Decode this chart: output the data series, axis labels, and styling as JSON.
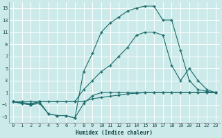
{
  "xlabel": "Humidex (Indice chaleur)",
  "bg_color": "#cceaea",
  "grid_color": "#ffffff",
  "line_color": "#1a6b6b",
  "xlim": [
    -0.5,
    23.5
  ],
  "ylim": [
    -4.0,
    16.0
  ],
  "xticks": [
    0,
    1,
    2,
    3,
    4,
    5,
    6,
    7,
    8,
    9,
    10,
    11,
    12,
    13,
    14,
    15,
    16,
    17,
    18,
    19,
    20,
    21,
    22,
    23
  ],
  "yticks": [
    -3,
    -1,
    1,
    3,
    5,
    7,
    9,
    11,
    13,
    15
  ],
  "line1_x": [
    0,
    1,
    2,
    3,
    4,
    5,
    6,
    7,
    8,
    9,
    10,
    11,
    12,
    13,
    14,
    15,
    16,
    17,
    18,
    19,
    20,
    21,
    22,
    23
  ],
  "line1_y": [
    -0.5,
    -0.5,
    -0.5,
    -0.5,
    -0.5,
    -0.5,
    -0.5,
    -0.5,
    -0.5,
    0.0,
    0.2,
    0.4,
    0.6,
    0.8,
    0.9,
    1.0,
    1.0,
    1.0,
    1.0,
    1.0,
    1.0,
    1.0,
    1.0,
    1.0
  ],
  "line2_x": [
    0,
    1,
    2,
    3,
    4,
    5,
    6,
    7,
    8,
    9,
    10,
    11,
    12,
    13,
    14,
    15,
    16,
    17,
    18,
    19,
    20,
    21,
    22,
    23
  ],
  "line2_y": [
    -0.5,
    -0.8,
    -1.0,
    -0.8,
    -2.5,
    -2.8,
    -2.8,
    -3.2,
    -0.8,
    0.5,
    1.0,
    1.0,
    1.0,
    1.0,
    1.0,
    1.0,
    1.0,
    1.0,
    1.0,
    1.0,
    1.0,
    1.0,
    1.0,
    1.0
  ],
  "line3_x": [
    0,
    2,
    3,
    7,
    8,
    9,
    10,
    11,
    12,
    13,
    14,
    15,
    16,
    17,
    18,
    19,
    20,
    21,
    22,
    23
  ],
  "line3_y": [
    -0.5,
    -0.8,
    -0.5,
    -0.5,
    1.5,
    3.0,
    4.5,
    5.5,
    7.0,
    8.5,
    10.5,
    11.0,
    11.0,
    10.5,
    5.5,
    3.0,
    5.0,
    3.0,
    1.5,
    1.0
  ],
  "line4_x": [
    0,
    1,
    2,
    3,
    4,
    5,
    6,
    7,
    8,
    9,
    10,
    11,
    12,
    13,
    14,
    15,
    16,
    17,
    18,
    19,
    20,
    21,
    22,
    23
  ],
  "line4_y": [
    -0.5,
    -0.8,
    -1.0,
    -0.5,
    -2.5,
    -2.8,
    -2.8,
    -3.2,
    4.5,
    7.5,
    11.0,
    12.5,
    13.5,
    14.5,
    15.0,
    15.3,
    15.3,
    13.0,
    13.0,
    8.0,
    3.0,
    1.5,
    1.2,
    1.0
  ]
}
